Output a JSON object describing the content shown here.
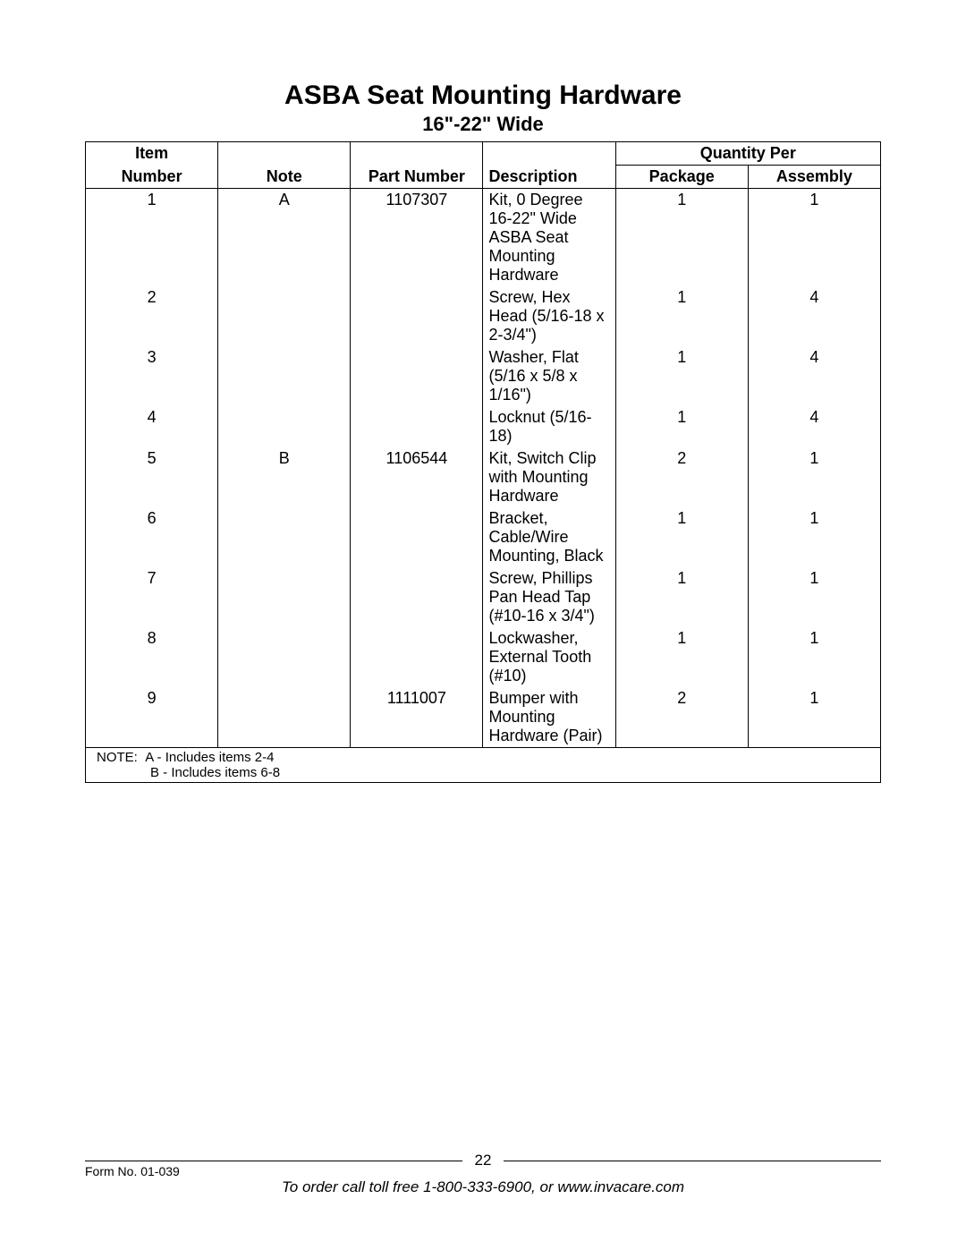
{
  "title": "ASBA Seat Mounting Hardware",
  "subtitle": "16\"-22\" Wide",
  "headers": {
    "item_top": "Item",
    "item_number": "Number",
    "note": "Note",
    "part_number": "Part Number",
    "description": "Description",
    "qty_per": "Quantity Per",
    "package": "Package",
    "assembly": "Assembly"
  },
  "rows": [
    {
      "item": "1",
      "note": "A",
      "part": "1107307",
      "desc": "Kit, 0 Degree 16-22\" Wide ASBA Seat Mounting Hardware",
      "pkg": "1",
      "asm": "1"
    },
    {
      "item": "2",
      "note": "",
      "part": "",
      "desc": "Screw, Hex Head (5/16-18 x 2-3/4\")",
      "pkg": "1",
      "asm": "4"
    },
    {
      "item": "3",
      "note": "",
      "part": "",
      "desc": "Washer, Flat (5/16 x 5/8 x 1/16\")",
      "pkg": "1",
      "asm": "4"
    },
    {
      "item": "4",
      "note": "",
      "part": "",
      "desc": "Locknut (5/16-18)",
      "pkg": "1",
      "asm": "4"
    },
    {
      "item": "5",
      "note": "B",
      "part": "1106544",
      "desc": "Kit, Switch Clip with Mounting Hardware",
      "pkg": "2",
      "asm": "1"
    },
    {
      "item": "6",
      "note": "",
      "part": "",
      "desc": "Bracket, Cable/Wire Mounting, Black",
      "pkg": "1",
      "asm": "1"
    },
    {
      "item": "7",
      "note": "",
      "part": "",
      "desc": "Screw, Phillips Pan Head Tap (#10-16 x 3/4\")",
      "pkg": "1",
      "asm": "1"
    },
    {
      "item": "8",
      "note": "",
      "part": "",
      "desc": "Lockwasher, External Tooth (#10)",
      "pkg": "1",
      "asm": "1"
    },
    {
      "item": "9",
      "note": "",
      "part": "1111007",
      "desc": "Bumper with Mounting Hardware (Pair)",
      "pkg": "2",
      "asm": "1"
    }
  ],
  "note_label": "NOTE:",
  "note_lines": [
    "A - Includes items 2-4",
    "B - Includes items 6-8"
  ],
  "footer": {
    "page_number": "22",
    "form_no": "Form No. 01-039",
    "order_text": "To order call toll free 1-800-333-6900, or www.invacare.com"
  },
  "colors": {
    "text": "#000000",
    "background": "#ffffff",
    "border": "#000000"
  },
  "fonts": {
    "title_size_pt": 22,
    "subtitle_size_pt": 16,
    "body_size_pt": 13,
    "footer_small_pt": 10
  }
}
